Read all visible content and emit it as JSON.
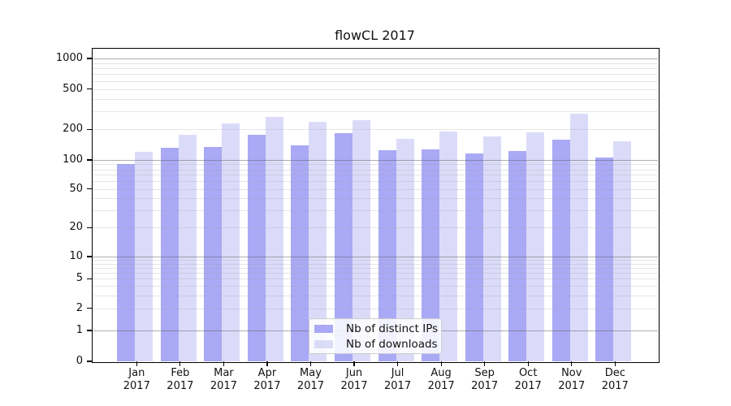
{
  "title": "flowCL 2017",
  "chart_data": {
    "type": "bar",
    "title": "flowCL 2017",
    "categories": [
      "Jan",
      "Feb",
      "Mar",
      "Apr",
      "May",
      "Jun",
      "Jul",
      "Aug",
      "Sep",
      "Oct",
      "Nov",
      "Dec"
    ],
    "x_tick_year": "2017",
    "series": [
      {
        "name": "Nb of distinct IPs",
        "color": "#a9a9f5",
        "values": [
          91,
          131,
          135,
          178,
          139,
          184,
          125,
          126,
          115,
          123,
          159,
          105
        ]
      },
      {
        "name": "Nb of downloads",
        "color": "#dbdbf9",
        "values": [
          120,
          177,
          230,
          265,
          238,
          246,
          161,
          192,
          170,
          187,
          284,
          154
        ]
      }
    ],
    "y_ticks": [
      0,
      1,
      2,
      5,
      10,
      20,
      50,
      100,
      200,
      500,
      1000
    ],
    "yscale": "log-like with 0 baseline",
    "ylim": [
      0,
      1300
    ],
    "xlabel": "",
    "ylabel": "",
    "grid": true,
    "legend_position": "lower-center"
  },
  "colors": {
    "background": "#ffffff",
    "major_grid": "#b0b0b0",
    "minor_grid": "#e9e9e9",
    "axis": "#000000",
    "text": "#111111"
  }
}
